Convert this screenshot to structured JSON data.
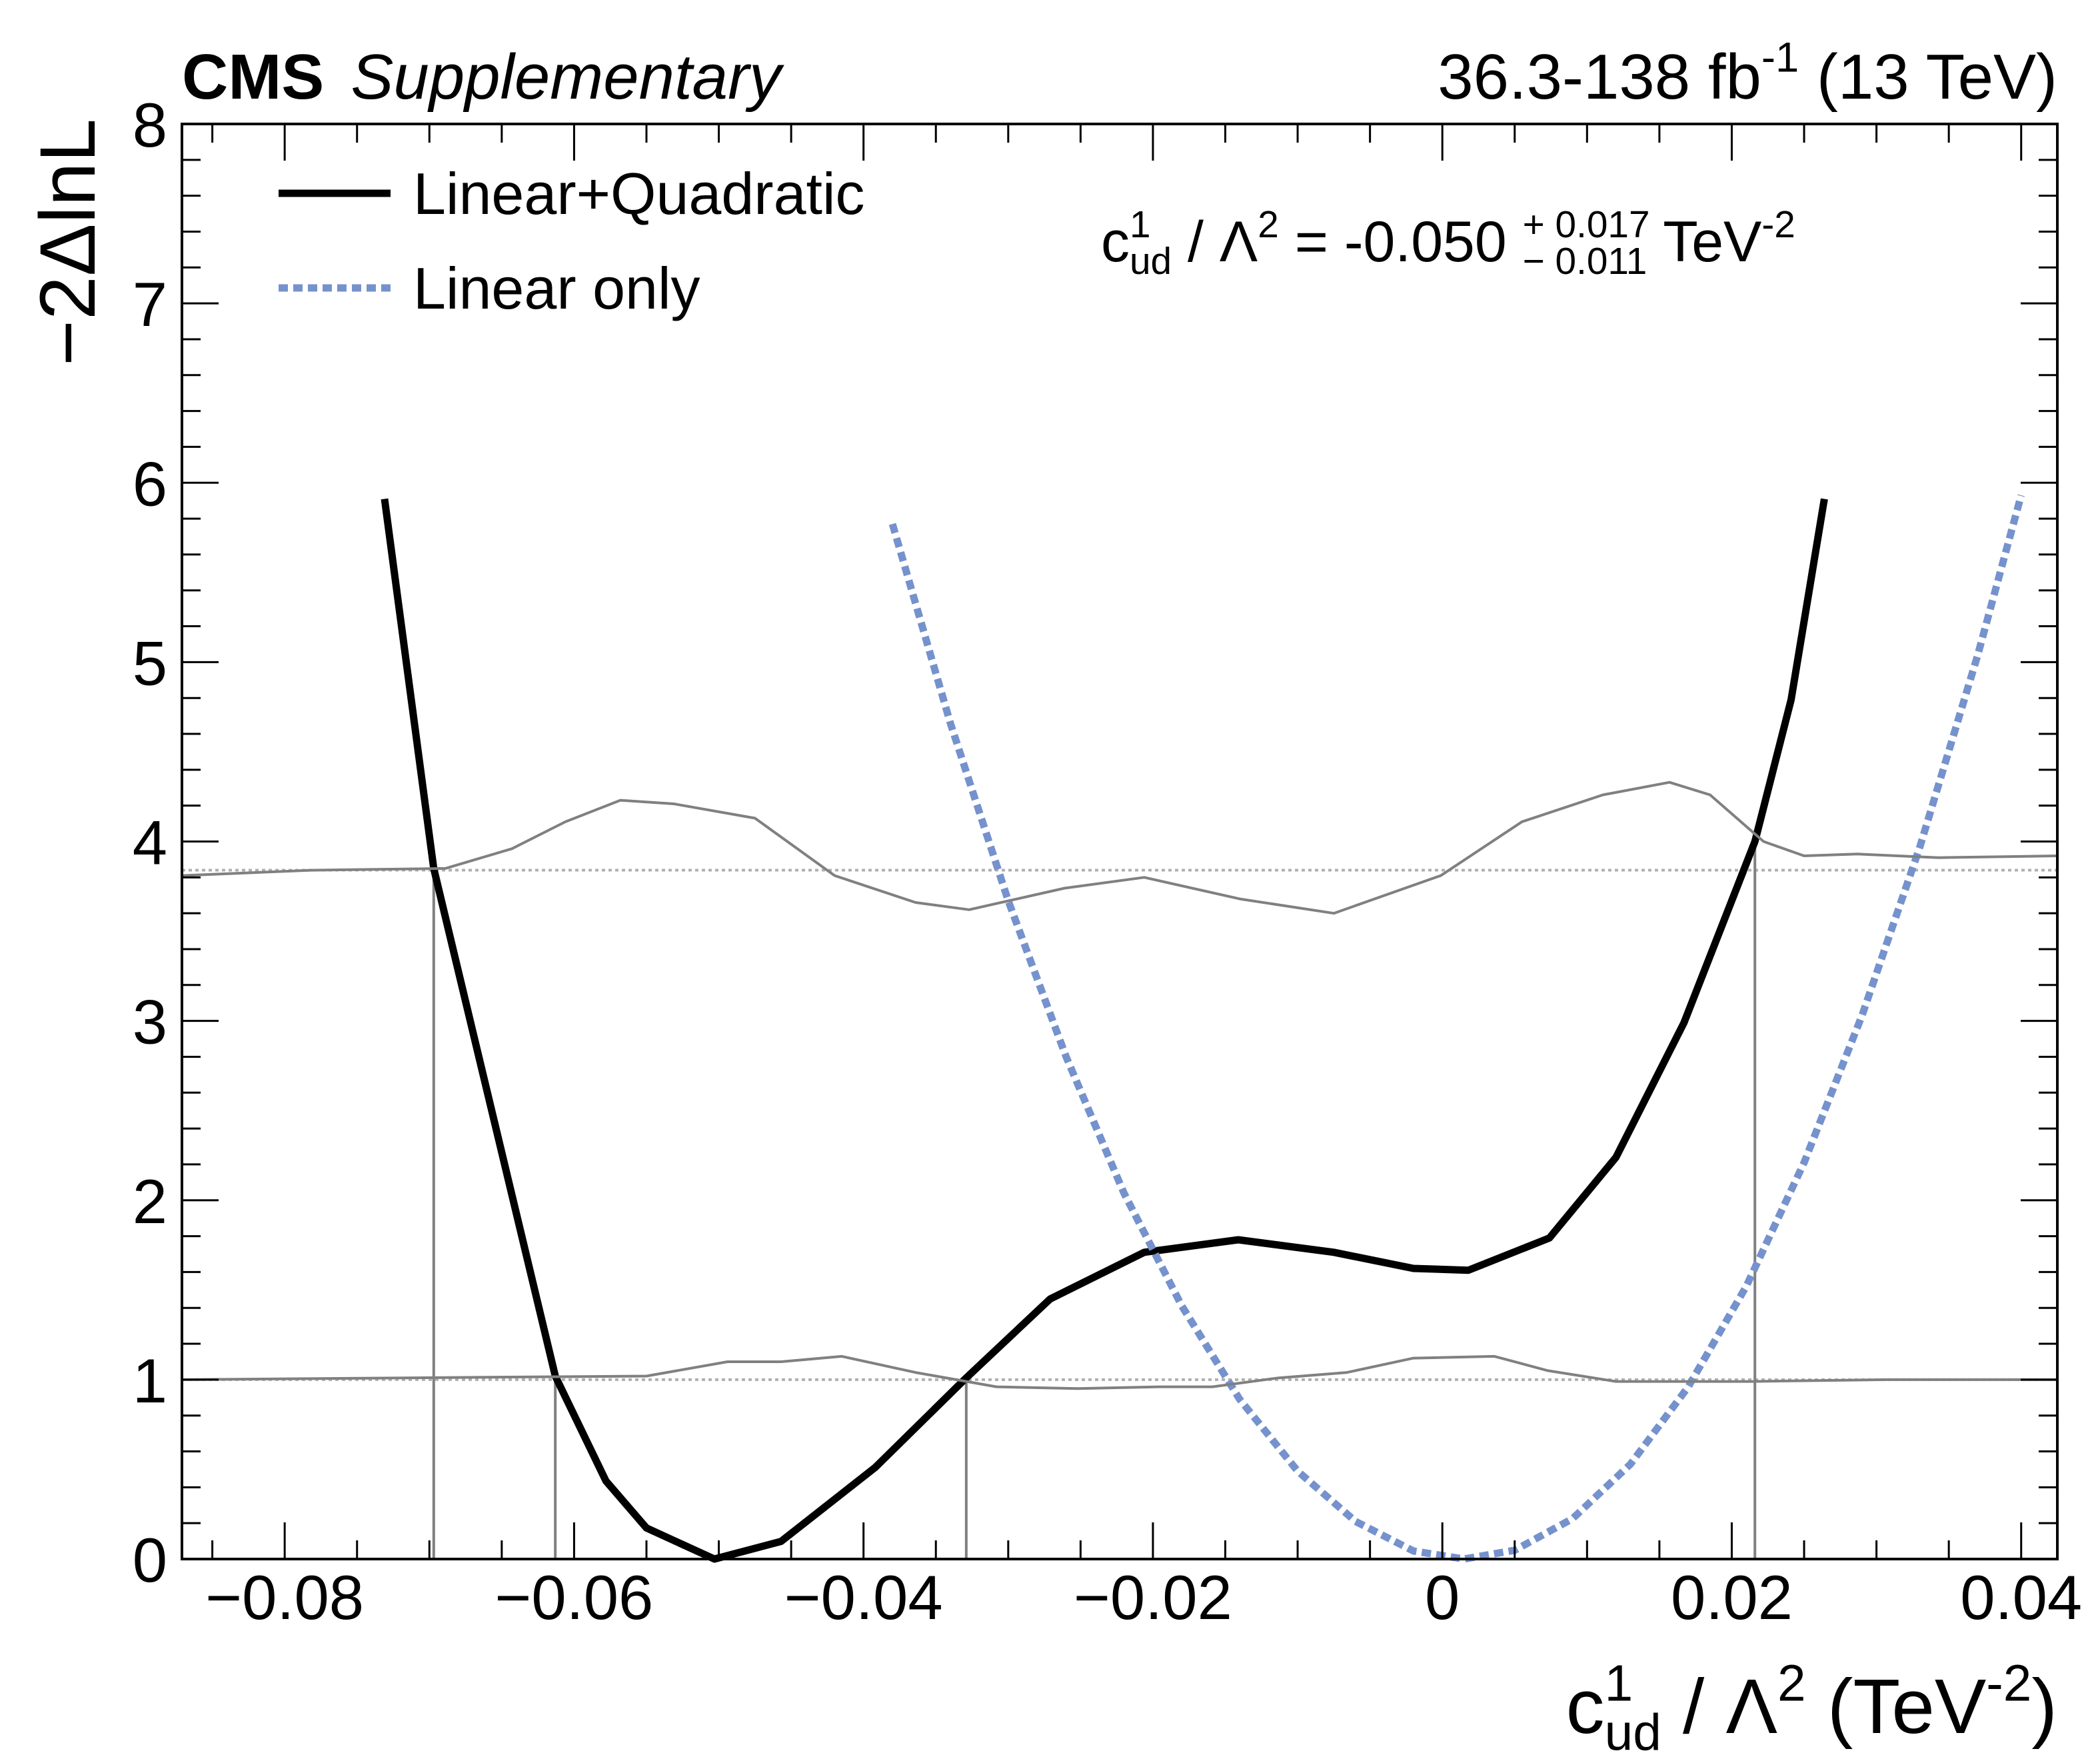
{
  "chart_data": {
    "type": "line",
    "title": "CMS",
    "subtitle": "Supplementary",
    "lumi": [
      {
        "text": "36.3-138 fb"
      },
      {
        "text": "-1",
        "pos": "sup"
      },
      {
        "text": " (13 TeV)"
      }
    ],
    "ylabel": "−2ΔlnL",
    "xlabel": [
      {
        "text": "c"
      },
      {
        "text": "1",
        "pos": "sup"
      },
      {
        "text": "ud",
        "pos": "sub",
        "under": true
      },
      {
        "text": " / Λ"
      },
      {
        "text": "2",
        "pos": "sup"
      },
      {
        "text": " (TeV"
      },
      {
        "text": "-2",
        "pos": "sup"
      },
      {
        "text": ")"
      }
    ],
    "annotation": [
      {
        "text": "c"
      },
      {
        "text": "1",
        "pos": "sup"
      },
      {
        "text": "ud",
        "pos": "sub",
        "under": true
      },
      {
        "text": " / Λ"
      },
      {
        "text": "2",
        "pos": "sup"
      },
      {
        "text": " = -0.050 "
      },
      {
        "text": "+ 0.017",
        "pos": "sup"
      },
      {
        "text": "− 0.011",
        "pos": "sub",
        "under": true
      },
      {
        "text": " TeV"
      },
      {
        "text": "-2",
        "pos": "sup"
      }
    ],
    "xlim": [
      -0.0871,
      0.0425
    ],
    "ylim": [
      0,
      8
    ],
    "xticks": [
      {
        "value": -0.08,
        "label": "−0.08"
      },
      {
        "value": -0.06,
        "label": "−0.06"
      },
      {
        "value": -0.04,
        "label": "−0.04"
      },
      {
        "value": -0.02,
        "label": "−0.02"
      },
      0,
      0.02,
      0.04
    ],
    "yticks": [
      0,
      1,
      2,
      3,
      4,
      5,
      6,
      7,
      8
    ],
    "legend": "top-left",
    "series": [
      {
        "name": "Linear+Quadratic",
        "color": "#000000",
        "style": "solid",
        "x": [
          -0.0731,
          -0.0697,
          -0.0613,
          -0.0578,
          -0.055,
          -0.0503,
          -0.0457,
          -0.0392,
          -0.0329,
          -0.0271,
          -0.0206,
          -0.0141,
          -0.0075,
          -0.002,
          0.0018,
          0.0074,
          0.012,
          0.0167,
          0.0216,
          0.0241,
          0.0264
        ],
        "values": [
          5.91,
          3.85,
          1.02,
          0.435,
          0.173,
          0,
          0.098,
          0.51,
          1.01,
          1.45,
          1.71,
          1.78,
          1.71,
          1.62,
          1.61,
          1.79,
          2.24,
          2.99,
          4.0,
          4.79,
          5.91
        ]
      },
      {
        "name": "Linear only",
        "color": "#7592cd",
        "style": "dashed",
        "x": [
          -0.038,
          -0.034,
          -0.03,
          -0.026,
          -0.022,
          -0.018,
          -0.014,
          -0.01,
          -0.006,
          -0.002,
          0.0015,
          0.005,
          0.009,
          0.013,
          0.017,
          0.021,
          0.025,
          0.029,
          0.033,
          0.037,
          0.04
        ],
        "values": [
          5.77,
          4.66,
          3.67,
          2.8,
          2.04,
          1.41,
          0.89,
          0.49,
          0.21,
          0.045,
          0,
          0.049,
          0.225,
          0.529,
          0.961,
          1.52,
          2.21,
          3.03,
          3.97,
          5.04,
          5.93
        ]
      },
      {
        "color": "#808080",
        "style": "solid",
        "x": [
          -0.0871,
          -0.0782,
          -0.0689,
          -0.0643,
          -0.0606,
          -0.0568,
          -0.0531,
          -0.0475,
          -0.042,
          -0.0364,
          -0.0327,
          -0.0261,
          -0.0206,
          -0.014,
          -0.0075,
          -0.0001,
          0.0055,
          0.0111,
          0.0157,
          0.0185,
          0.0222,
          0.025,
          0.0287,
          0.0343,
          0.0425
        ],
        "values": [
          3.81,
          3.84,
          3.85,
          3.96,
          4.11,
          4.23,
          4.21,
          4.13,
          3.81,
          3.66,
          3.62,
          3.74,
          3.8,
          3.68,
          3.6,
          3.81,
          4.11,
          4.26,
          4.33,
          4.26,
          4.0,
          3.92,
          3.93,
          3.91,
          3.92
        ]
      },
      {
        "color": "#808080",
        "style": "solid",
        "x": [
          -0.0871,
          -0.0717,
          -0.055,
          -0.0494,
          -0.0457,
          -0.0415,
          -0.0364,
          -0.0308,
          -0.0252,
          -0.0196,
          -0.0159,
          -0.0113,
          -0.0066,
          -0.002,
          0.0036,
          0.0073,
          0.012,
          0.0213,
          0.0306,
          0.0425
        ],
        "values": [
          1.0,
          1.01,
          1.02,
          1.1,
          1.1,
          1.13,
          1.04,
          0.96,
          0.95,
          0.96,
          0.96,
          1.01,
          1.04,
          1.12,
          1.13,
          1.05,
          0.99,
          0.99,
          1.0,
          1.0
        ]
      }
    ],
    "hlines": [
      3.84,
      1
    ],
    "vlines": [
      {
        "x": -0.0697,
        "y": 3.84
      },
      {
        "x": -0.0613,
        "y": 1
      },
      {
        "x": -0.0329,
        "y": 1
      },
      {
        "x": 0.0216,
        "y": 4.0
      }
    ]
  }
}
